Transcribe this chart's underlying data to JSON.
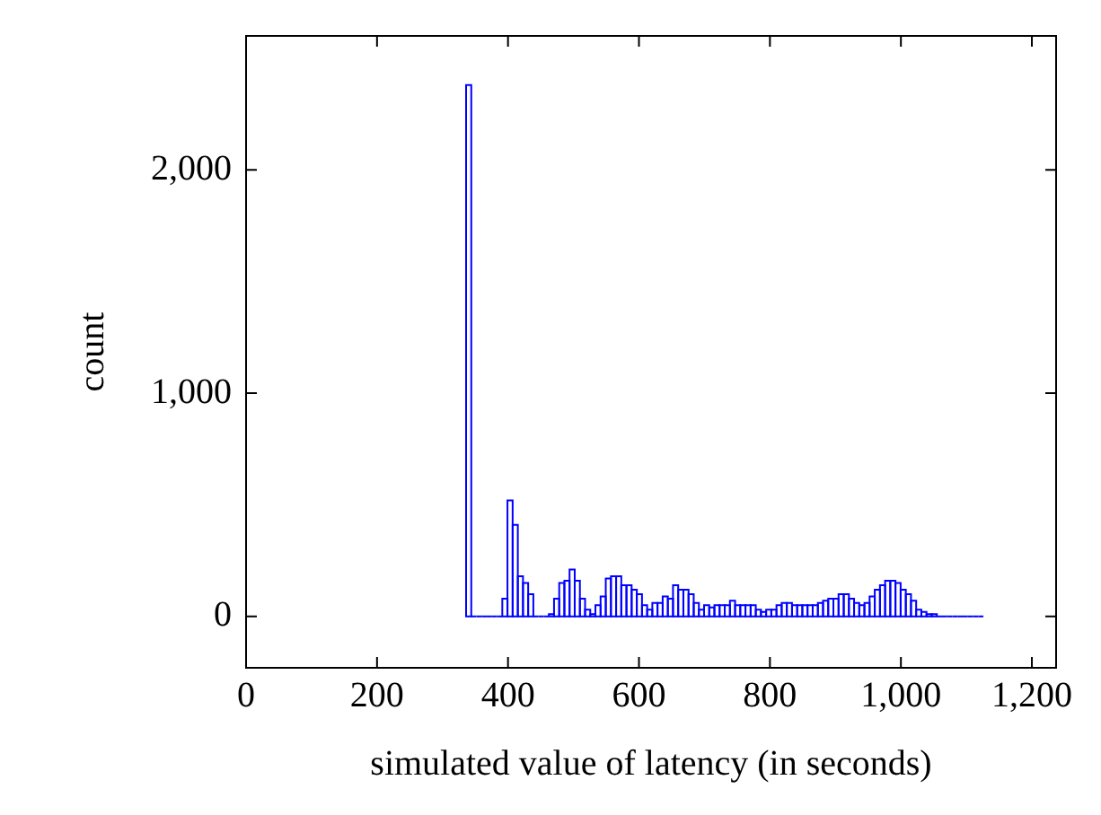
{
  "chart_data": {
    "type": "histogram",
    "xlabel": "simulated value of latency (in seconds)",
    "ylabel": "count",
    "color": "#0000ff",
    "bins": [
      336,
      343.9,
      351.8,
      359.7,
      367.6,
      375.5,
      383.4,
      391.3,
      399.2,
      407.1,
      415,
      422.9,
      430.8,
      438.7,
      446.6,
      454.5,
      462.4,
      470.3,
      478.2,
      486.1,
      494,
      501.9,
      509.8,
      517.7,
      525.6,
      533.5,
      541.4,
      549.3,
      557.2,
      565.1,
      573,
      580.9,
      588.8,
      596.7,
      604.6,
      612.5,
      620.4,
      628.3,
      636.2,
      644.1,
      652,
      659.9,
      667.8,
      675.7,
      683.6,
      691.5,
      699.4,
      707.3,
      715.2,
      723.1,
      731,
      738.9,
      746.8,
      754.7,
      762.6,
      770.5,
      778.4,
      786.3,
      794.2,
      802.1,
      810,
      817.9,
      825.8,
      833.7,
      841.6,
      849.5,
      857.4,
      865.3,
      873.2,
      881.1,
      889,
      896.9,
      904.8,
      912.7,
      920.6,
      928.5,
      936.4,
      944.3,
      952.2,
      960.1,
      968,
      975.9,
      983.8,
      991.7,
      999.6,
      1007.5,
      1015.4,
      1023.3,
      1031.2,
      1039.1,
      1047,
      1054.9,
      1062.8,
      1070.7,
      1078.6,
      1086.5,
      1094.4,
      1102.3,
      1110.2,
      1118.1,
      1126
    ],
    "values": [
      2380,
      0,
      0,
      0,
      0,
      0,
      0,
      80,
      520,
      410,
      180,
      150,
      100,
      0,
      0,
      0,
      10,
      80,
      150,
      160,
      210,
      160,
      80,
      30,
      10,
      50,
      90,
      170,
      180,
      180,
      140,
      140,
      120,
      100,
      50,
      30,
      60,
      60,
      90,
      80,
      140,
      120,
      120,
      100,
      60,
      30,
      50,
      40,
      50,
      50,
      50,
      70,
      50,
      50,
      50,
      50,
      30,
      20,
      30,
      30,
      50,
      60,
      60,
      50,
      50,
      50,
      50,
      50,
      60,
      70,
      80,
      80,
      100,
      100,
      80,
      60,
      50,
      60,
      90,
      120,
      140,
      160,
      160,
      150,
      120,
      100,
      70,
      30,
      20,
      10,
      10,
      0,
      0,
      0,
      0,
      0,
      0,
      0,
      0,
      0
    ],
    "xlim": [
      0,
      1237
    ],
    "ylim": [
      -230,
      2600
    ],
    "xticks": [
      0,
      200,
      400,
      600,
      800,
      {
        "value": 1000,
        "label": "1,000"
      },
      {
        "value": 1200,
        "label": "1,200"
      }
    ],
    "yticks": [
      0,
      {
        "value": 1000,
        "label": "1,000"
      },
      {
        "value": 2000,
        "label": "2,000"
      }
    ],
    "grid": false,
    "legend": false
  }
}
